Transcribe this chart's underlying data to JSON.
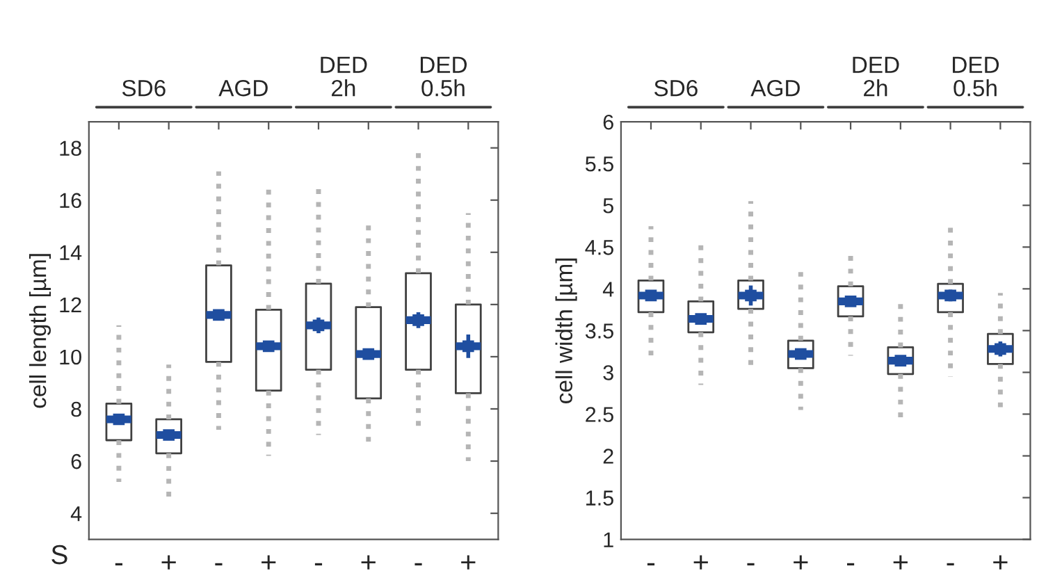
{
  "chart_data": [
    {
      "type": "box",
      "ylabel": "cell length [µm]",
      "xlabel": "S",
      "categories": [
        "-",
        "+",
        "-",
        "+",
        "-",
        "+",
        "-",
        "+"
      ],
      "ylim": [
        3,
        19
      ],
      "yticks": [
        4,
        6,
        8,
        10,
        12,
        14,
        16,
        18
      ],
      "grid": false,
      "legend": false,
      "annotations": [
        "SD6",
        "AGD",
        "DED\n2h",
        "DED\n0.5h"
      ],
      "boxes": [
        {
          "low": 5.2,
          "q1": 6.8,
          "median": 7.6,
          "q3": 8.2,
          "high": 11.2
        },
        {
          "low": 4.5,
          "q1": 6.3,
          "median": 7.0,
          "q3": 7.6,
          "high": 9.7
        },
        {
          "low": 7.2,
          "q1": 9.8,
          "median": 11.6,
          "q3": 13.5,
          "high": 17.1
        },
        {
          "low": 6.2,
          "q1": 8.7,
          "median": 10.4,
          "q3": 11.8,
          "high": 16.6
        },
        {
          "low": 7.0,
          "q1": 9.5,
          "median": 11.2,
          "q3": 12.8,
          "high": 16.6
        },
        {
          "low": 6.5,
          "q1": 8.4,
          "median": 10.1,
          "q3": 11.9,
          "high": 15.2
        },
        {
          "low": 7.2,
          "q1": 9.5,
          "median": 11.4,
          "q3": 13.2,
          "high": 18.0
        },
        {
          "low": 6.0,
          "q1": 8.6,
          "median": 10.4,
          "q3": 12.0,
          "high": 15.5
        }
      ],
      "series": [
        {
          "type": "scatter",
          "color": "#1f4ea0",
          "marker": "square",
          "values": [
            7.6,
            7.0,
            11.6,
            10.4,
            11.2,
            10.1,
            11.4,
            10.4
          ],
          "errors": [
            0.1,
            0.1,
            0.15,
            0.1,
            0.3,
            0.1,
            0.3,
            0.45
          ]
        }
      ]
    },
    {
      "type": "box",
      "ylabel": "cell width [µm]",
      "categories": [
        "-",
        "+",
        "-",
        "+",
        "-",
        "+",
        "-",
        "+"
      ],
      "ylim": [
        1,
        6
      ],
      "yticks": [
        1,
        {
          "value": 1.5,
          "label": "1.5"
        },
        2,
        {
          "value": 2.5,
          "label": "2.5"
        },
        3,
        {
          "value": 3.5,
          "label": "3.5"
        },
        4,
        {
          "value": 4.5,
          "label": "4.5"
        },
        5,
        {
          "value": 5.5,
          "label": "5.5"
        },
        6
      ],
      "grid": false,
      "legend": false,
      "annotations": [
        "SD6",
        "AGD",
        "DED\n2h",
        "DED\n0.5h"
      ],
      "boxes": [
        {
          "low": 3.2,
          "q1": 3.72,
          "median": 3.92,
          "q3": 4.1,
          "high": 4.75
        },
        {
          "low": 2.85,
          "q1": 3.48,
          "median": 3.64,
          "q3": 3.85,
          "high": 4.55
        },
        {
          "low": 3.05,
          "q1": 3.76,
          "median": 3.92,
          "q3": 4.1,
          "high": 5.05
        },
        {
          "low": 2.55,
          "q1": 3.05,
          "median": 3.22,
          "q3": 3.38,
          "high": 4.2
        },
        {
          "low": 3.2,
          "q1": 3.67,
          "median": 3.85,
          "q3": 4.03,
          "high": 4.45
        },
        {
          "low": 2.4,
          "q1": 2.98,
          "median": 3.14,
          "q3": 3.3,
          "high": 3.85
        },
        {
          "low": 2.95,
          "q1": 3.72,
          "median": 3.92,
          "q3": 4.06,
          "high": 4.75
        },
        {
          "low": 2.5,
          "q1": 3.1,
          "median": 3.28,
          "q3": 3.46,
          "high": 3.95
        }
      ],
      "series": [
        {
          "type": "scatter",
          "color": "#1f4ea0",
          "marker": "square",
          "values": [
            3.92,
            3.64,
            3.92,
            3.22,
            3.85,
            3.14,
            3.92,
            3.28
          ],
          "errors": [
            0.04,
            0.03,
            0.12,
            0.03,
            0.03,
            0.03,
            0.07,
            0.09
          ]
        }
      ]
    }
  ]
}
